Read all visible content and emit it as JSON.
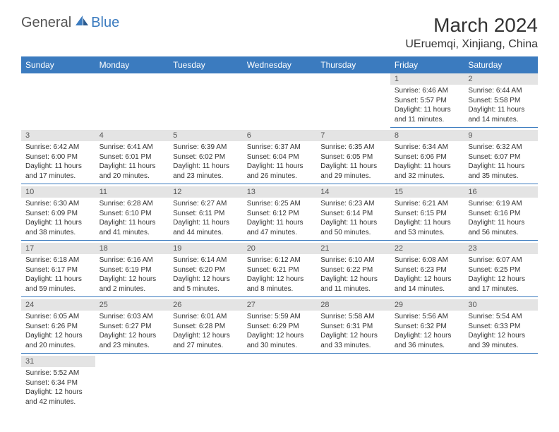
{
  "brand": {
    "part1": "General",
    "part2": "Blue"
  },
  "title": "March 2024",
  "location": "UEruemqi, Xinjiang, China",
  "colors": {
    "header_bg": "#3b7bbf",
    "daynum_bg": "#e4e4e4",
    "text": "#333333",
    "cell_border": "#3b7bbf",
    "page_bg": "#ffffff"
  },
  "weekdays": [
    "Sunday",
    "Monday",
    "Tuesday",
    "Wednesday",
    "Thursday",
    "Friday",
    "Saturday"
  ],
  "weeks": [
    [
      null,
      null,
      null,
      null,
      null,
      {
        "n": "1",
        "sr": "6:46 AM",
        "ss": "5:57 PM",
        "dl": "11 hours and 11 minutes."
      },
      {
        "n": "2",
        "sr": "6:44 AM",
        "ss": "5:58 PM",
        "dl": "11 hours and 14 minutes."
      }
    ],
    [
      {
        "n": "3",
        "sr": "6:42 AM",
        "ss": "6:00 PM",
        "dl": "11 hours and 17 minutes."
      },
      {
        "n": "4",
        "sr": "6:41 AM",
        "ss": "6:01 PM",
        "dl": "11 hours and 20 minutes."
      },
      {
        "n": "5",
        "sr": "6:39 AM",
        "ss": "6:02 PM",
        "dl": "11 hours and 23 minutes."
      },
      {
        "n": "6",
        "sr": "6:37 AM",
        "ss": "6:04 PM",
        "dl": "11 hours and 26 minutes."
      },
      {
        "n": "7",
        "sr": "6:35 AM",
        "ss": "6:05 PM",
        "dl": "11 hours and 29 minutes."
      },
      {
        "n": "8",
        "sr": "6:34 AM",
        "ss": "6:06 PM",
        "dl": "11 hours and 32 minutes."
      },
      {
        "n": "9",
        "sr": "6:32 AM",
        "ss": "6:07 PM",
        "dl": "11 hours and 35 minutes."
      }
    ],
    [
      {
        "n": "10",
        "sr": "6:30 AM",
        "ss": "6:09 PM",
        "dl": "11 hours and 38 minutes."
      },
      {
        "n": "11",
        "sr": "6:28 AM",
        "ss": "6:10 PM",
        "dl": "11 hours and 41 minutes."
      },
      {
        "n": "12",
        "sr": "6:27 AM",
        "ss": "6:11 PM",
        "dl": "11 hours and 44 minutes."
      },
      {
        "n": "13",
        "sr": "6:25 AM",
        "ss": "6:12 PM",
        "dl": "11 hours and 47 minutes."
      },
      {
        "n": "14",
        "sr": "6:23 AM",
        "ss": "6:14 PM",
        "dl": "11 hours and 50 minutes."
      },
      {
        "n": "15",
        "sr": "6:21 AM",
        "ss": "6:15 PM",
        "dl": "11 hours and 53 minutes."
      },
      {
        "n": "16",
        "sr": "6:19 AM",
        "ss": "6:16 PM",
        "dl": "11 hours and 56 minutes."
      }
    ],
    [
      {
        "n": "17",
        "sr": "6:18 AM",
        "ss": "6:17 PM",
        "dl": "11 hours and 59 minutes."
      },
      {
        "n": "18",
        "sr": "6:16 AM",
        "ss": "6:19 PM",
        "dl": "12 hours and 2 minutes."
      },
      {
        "n": "19",
        "sr": "6:14 AM",
        "ss": "6:20 PM",
        "dl": "12 hours and 5 minutes."
      },
      {
        "n": "20",
        "sr": "6:12 AM",
        "ss": "6:21 PM",
        "dl": "12 hours and 8 minutes."
      },
      {
        "n": "21",
        "sr": "6:10 AM",
        "ss": "6:22 PM",
        "dl": "12 hours and 11 minutes."
      },
      {
        "n": "22",
        "sr": "6:08 AM",
        "ss": "6:23 PM",
        "dl": "12 hours and 14 minutes."
      },
      {
        "n": "23",
        "sr": "6:07 AM",
        "ss": "6:25 PM",
        "dl": "12 hours and 17 minutes."
      }
    ],
    [
      {
        "n": "24",
        "sr": "6:05 AM",
        "ss": "6:26 PM",
        "dl": "12 hours and 20 minutes."
      },
      {
        "n": "25",
        "sr": "6:03 AM",
        "ss": "6:27 PM",
        "dl": "12 hours and 23 minutes."
      },
      {
        "n": "26",
        "sr": "6:01 AM",
        "ss": "6:28 PM",
        "dl": "12 hours and 27 minutes."
      },
      {
        "n": "27",
        "sr": "5:59 AM",
        "ss": "6:29 PM",
        "dl": "12 hours and 30 minutes."
      },
      {
        "n": "28",
        "sr": "5:58 AM",
        "ss": "6:31 PM",
        "dl": "12 hours and 33 minutes."
      },
      {
        "n": "29",
        "sr": "5:56 AM",
        "ss": "6:32 PM",
        "dl": "12 hours and 36 minutes."
      },
      {
        "n": "30",
        "sr": "5:54 AM",
        "ss": "6:33 PM",
        "dl": "12 hours and 39 minutes."
      }
    ],
    [
      {
        "n": "31",
        "sr": "5:52 AM",
        "ss": "6:34 PM",
        "dl": "12 hours and 42 minutes.",
        "last": true
      },
      null,
      null,
      null,
      null,
      null,
      null
    ]
  ],
  "labels": {
    "sunrise": "Sunrise:",
    "sunset": "Sunset:",
    "daylight": "Daylight:"
  }
}
